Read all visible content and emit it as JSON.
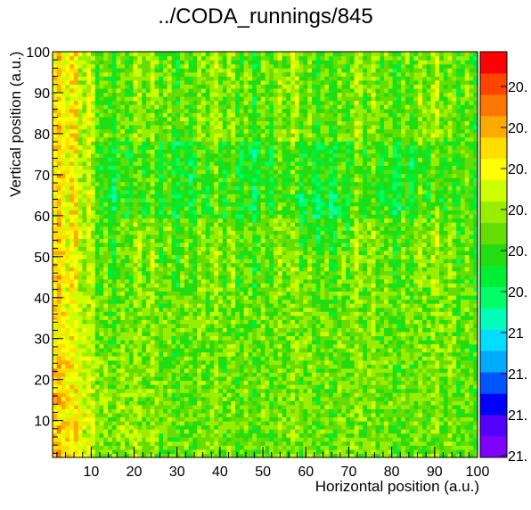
{
  "chart_data": {
    "type": "heatmap",
    "title": "../CODA_runnings/845",
    "xlabel": "Horizontal position (a.u.)",
    "ylabel": "Vertical position (a.u.)",
    "xlim": [
      1,
      100
    ],
    "ylim": [
      1,
      100
    ],
    "bins": 100,
    "x_ticks": [
      10,
      20,
      30,
      40,
      50,
      60,
      70,
      80,
      90,
      100
    ],
    "y_ticks": [
      10,
      20,
      30,
      40,
      50,
      60,
      70,
      80,
      90,
      100
    ],
    "colorbar": {
      "palette": [
        "#7f00ff",
        "#5500ff",
        "#0000ff",
        "#0055ff",
        "#00aaff",
        "#00ddff",
        "#00ffbb",
        "#00ff66",
        "#00ee33",
        "#22dd11",
        "#66dd00",
        "#99ee00",
        "#ccff00",
        "#ffff00",
        "#ffdd00",
        "#ffaa00",
        "#ff7700",
        "#ff4400",
        "#ff0000"
      ],
      "labels": [
        "20.",
        "20.",
        "20.",
        "20.",
        "20.",
        "20.",
        "21",
        "21.",
        "21.",
        "21."
      ]
    },
    "description_scale": "values near 21, mostly green"
  }
}
